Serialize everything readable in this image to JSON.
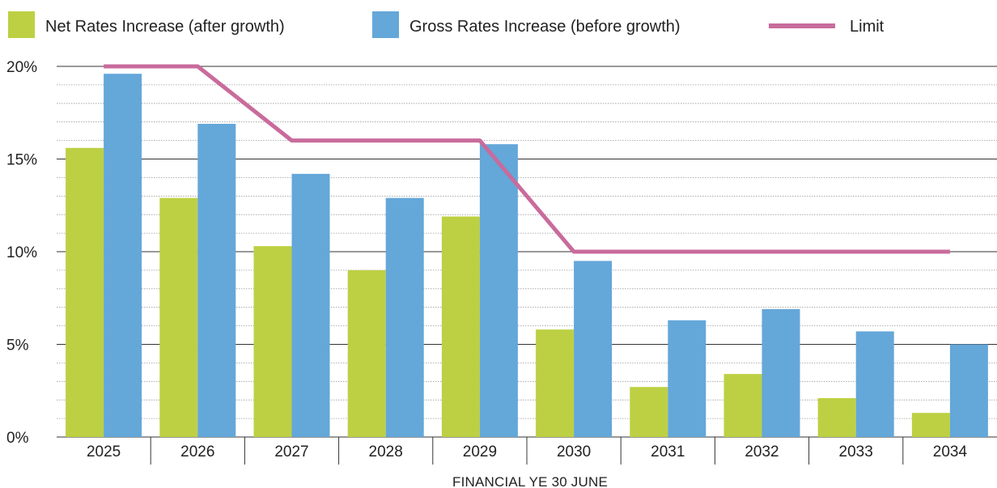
{
  "chart_data": {
    "type": "bar",
    "title": "",
    "xlabel": "FINANCIAL YE 30 JUNE",
    "ylabel": "",
    "categories": [
      "2025",
      "2026",
      "2027",
      "2028",
      "2029",
      "2030",
      "2031",
      "2032",
      "2033",
      "2034"
    ],
    "series": [
      {
        "name": "Net Rates Increase (after growth)",
        "kind": "bar",
        "color": "#bdd043",
        "values": [
          15.6,
          12.9,
          10.3,
          9.0,
          11.9,
          5.8,
          2.7,
          3.4,
          2.1,
          1.3
        ]
      },
      {
        "name": "Gross Rates Increase (before growth)",
        "kind": "bar",
        "color": "#64a7d9",
        "values": [
          19.6,
          16.9,
          14.2,
          12.9,
          15.8,
          9.5,
          6.3,
          6.9,
          5.7,
          5.0
        ]
      },
      {
        "name": "Limit",
        "kind": "line",
        "color": "#c96b9c",
        "values": [
          20,
          20,
          16,
          16,
          16,
          10,
          10,
          10,
          10,
          10
        ]
      }
    ],
    "yticks": [
      "0%",
      "5%",
      "10%",
      "15%",
      "20%"
    ],
    "yticks_values": [
      0,
      5,
      10,
      15,
      20
    ],
    "ylim": [
      0,
      20
    ],
    "grid": true,
    "legend_position": "top"
  }
}
